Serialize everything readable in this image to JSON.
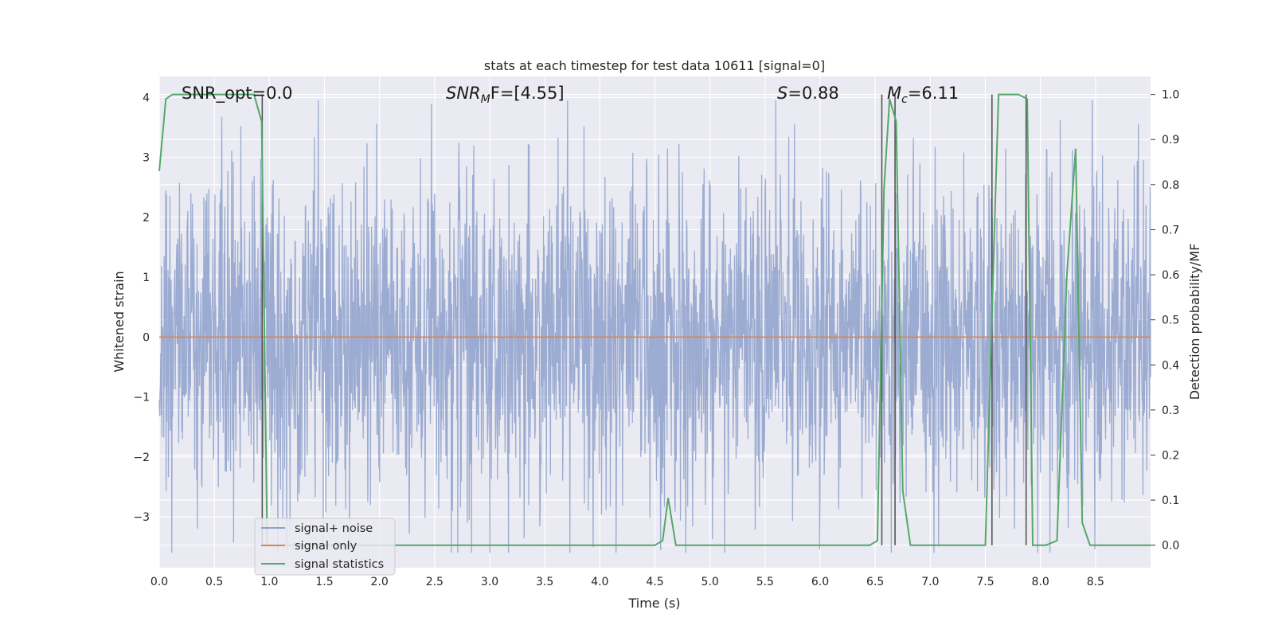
{
  "chart_data": {
    "type": "line",
    "title": "stats at each timestep for test data 10611 [signal=0]",
    "xlabel": "Time (s)",
    "ylabel_left": "Whitened strain",
    "ylabel_right": "Detection probability/MF",
    "xlim": [
      0.0,
      9.0
    ],
    "ylim_left": [
      -3.85,
      4.35
    ],
    "ylim_right": [
      -0.05,
      1.04
    ],
    "x_ticks": [
      "0.0",
      "0.5",
      "1.0",
      "1.5",
      "2.0",
      "2.5",
      "3.0",
      "3.5",
      "4.0",
      "4.5",
      "5.0",
      "5.5",
      "6.0",
      "6.5",
      "7.0",
      "7.5",
      "8.0",
      "8.5"
    ],
    "y_ticks_left": [
      "4",
      "3",
      "2",
      "1",
      "0",
      "−1",
      "−2",
      "−3"
    ],
    "y_ticks_right": [
      "1.0",
      "0.9",
      "0.8",
      "0.7",
      "0.6",
      "0.5",
      "0.4",
      "0.3",
      "0.2",
      "0.1",
      "0.0"
    ],
    "grid": true,
    "legend_position": "lower-left",
    "annotations": {
      "snr_opt": "SNR_opt=0.0",
      "snr_mf_prefix": "SNR",
      "snr_mf_sub": "M",
      "snr_mf_suffix": "F=[4.55]",
      "s_symbol": "S",
      "s_value": "=0.88",
      "mc_symbol": "M",
      "mc_sub": "c",
      "mc_value": "=6.11"
    },
    "series": [
      {
        "name": "signal+ noise",
        "color": "#8da0cb",
        "axis": "left",
        "description_stats": {
          "min": -3.6,
          "max": 3.95,
          "typical_amplitude": 2.2
        }
      },
      {
        "name": "signal only",
        "color": "#dd8452",
        "axis": "left",
        "x": [
          0.0,
          9.0
        ],
        "y": [
          0.0,
          0.0
        ]
      },
      {
        "name": "signal statistics",
        "color": "#55a868",
        "axis": "right",
        "x": [
          0.0,
          0.06,
          0.12,
          0.2,
          0.5,
          0.86,
          0.93,
          0.98,
          1.06,
          4.5,
          4.57,
          4.62,
          4.69,
          6.45,
          6.52,
          6.58,
          6.63,
          6.69,
          6.75,
          6.82,
          7.5,
          7.57,
          7.62,
          7.8,
          7.88,
          7.93,
          8.05,
          8.15,
          8.24,
          8.32,
          8.38,
          8.45,
          9.0
        ],
        "y": [
          0.83,
          0.99,
          1.0,
          1.0,
          1.0,
          1.0,
          0.94,
          0.0,
          0.0,
          0.0,
          0.01,
          0.105,
          0.0,
          0.0,
          0.01,
          0.79,
          0.99,
          0.94,
          0.12,
          0.0,
          0.0,
          0.6,
          1.0,
          1.0,
          0.99,
          0.0,
          0.0,
          0.01,
          0.6,
          0.88,
          0.05,
          0.0,
          0.0
        ]
      }
    ],
    "vertical_markers": {
      "color": "#555555",
      "x": [
        0.935,
        6.56,
        6.68,
        7.56,
        7.87
      ]
    }
  }
}
